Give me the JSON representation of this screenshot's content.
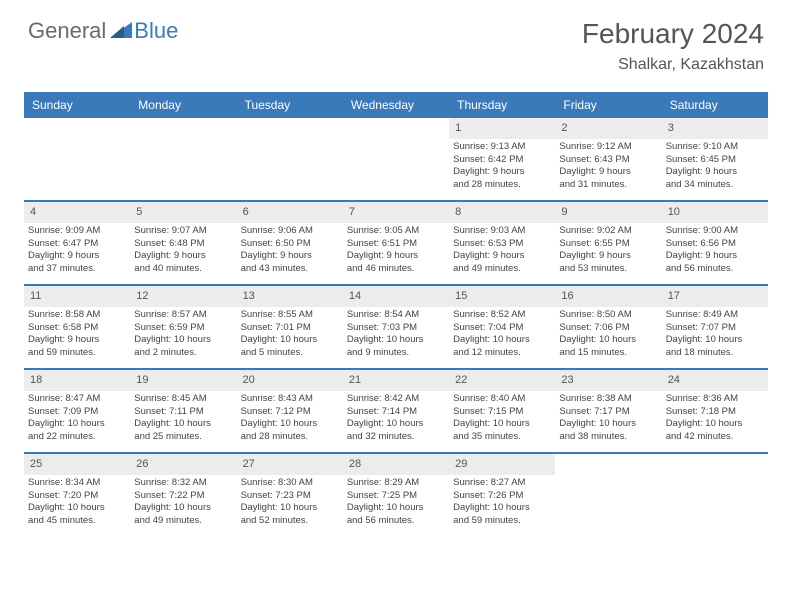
{
  "logo": {
    "general": "General",
    "blue": "Blue"
  },
  "title": "February 2024",
  "location": "Shalkar, Kazakhstan",
  "dayHeaders": [
    "Sunday",
    "Monday",
    "Tuesday",
    "Wednesday",
    "Thursday",
    "Friday",
    "Saturday"
  ],
  "colors": {
    "headerBg": "#3a7ab8",
    "dayNumBg": "#ececec",
    "border": "#3a7ab8"
  },
  "weeks": [
    [
      {
        "empty": true
      },
      {
        "empty": true
      },
      {
        "empty": true
      },
      {
        "empty": true
      },
      {
        "num": "1",
        "sunrise": "Sunrise: 9:13 AM",
        "sunset": "Sunset: 6:42 PM",
        "daylight1": "Daylight: 9 hours",
        "daylight2": "and 28 minutes."
      },
      {
        "num": "2",
        "sunrise": "Sunrise: 9:12 AM",
        "sunset": "Sunset: 6:43 PM",
        "daylight1": "Daylight: 9 hours",
        "daylight2": "and 31 minutes."
      },
      {
        "num": "3",
        "sunrise": "Sunrise: 9:10 AM",
        "sunset": "Sunset: 6:45 PM",
        "daylight1": "Daylight: 9 hours",
        "daylight2": "and 34 minutes."
      }
    ],
    [
      {
        "num": "4",
        "sunrise": "Sunrise: 9:09 AM",
        "sunset": "Sunset: 6:47 PM",
        "daylight1": "Daylight: 9 hours",
        "daylight2": "and 37 minutes."
      },
      {
        "num": "5",
        "sunrise": "Sunrise: 9:07 AM",
        "sunset": "Sunset: 6:48 PM",
        "daylight1": "Daylight: 9 hours",
        "daylight2": "and 40 minutes."
      },
      {
        "num": "6",
        "sunrise": "Sunrise: 9:06 AM",
        "sunset": "Sunset: 6:50 PM",
        "daylight1": "Daylight: 9 hours",
        "daylight2": "and 43 minutes."
      },
      {
        "num": "7",
        "sunrise": "Sunrise: 9:05 AM",
        "sunset": "Sunset: 6:51 PM",
        "daylight1": "Daylight: 9 hours",
        "daylight2": "and 46 minutes."
      },
      {
        "num": "8",
        "sunrise": "Sunrise: 9:03 AM",
        "sunset": "Sunset: 6:53 PM",
        "daylight1": "Daylight: 9 hours",
        "daylight2": "and 49 minutes."
      },
      {
        "num": "9",
        "sunrise": "Sunrise: 9:02 AM",
        "sunset": "Sunset: 6:55 PM",
        "daylight1": "Daylight: 9 hours",
        "daylight2": "and 53 minutes."
      },
      {
        "num": "10",
        "sunrise": "Sunrise: 9:00 AM",
        "sunset": "Sunset: 6:56 PM",
        "daylight1": "Daylight: 9 hours",
        "daylight2": "and 56 minutes."
      }
    ],
    [
      {
        "num": "11",
        "sunrise": "Sunrise: 8:58 AM",
        "sunset": "Sunset: 6:58 PM",
        "daylight1": "Daylight: 9 hours",
        "daylight2": "and 59 minutes."
      },
      {
        "num": "12",
        "sunrise": "Sunrise: 8:57 AM",
        "sunset": "Sunset: 6:59 PM",
        "daylight1": "Daylight: 10 hours",
        "daylight2": "and 2 minutes."
      },
      {
        "num": "13",
        "sunrise": "Sunrise: 8:55 AM",
        "sunset": "Sunset: 7:01 PM",
        "daylight1": "Daylight: 10 hours",
        "daylight2": "and 5 minutes."
      },
      {
        "num": "14",
        "sunrise": "Sunrise: 8:54 AM",
        "sunset": "Sunset: 7:03 PM",
        "daylight1": "Daylight: 10 hours",
        "daylight2": "and 9 minutes."
      },
      {
        "num": "15",
        "sunrise": "Sunrise: 8:52 AM",
        "sunset": "Sunset: 7:04 PM",
        "daylight1": "Daylight: 10 hours",
        "daylight2": "and 12 minutes."
      },
      {
        "num": "16",
        "sunrise": "Sunrise: 8:50 AM",
        "sunset": "Sunset: 7:06 PM",
        "daylight1": "Daylight: 10 hours",
        "daylight2": "and 15 minutes."
      },
      {
        "num": "17",
        "sunrise": "Sunrise: 8:49 AM",
        "sunset": "Sunset: 7:07 PM",
        "daylight1": "Daylight: 10 hours",
        "daylight2": "and 18 minutes."
      }
    ],
    [
      {
        "num": "18",
        "sunrise": "Sunrise: 8:47 AM",
        "sunset": "Sunset: 7:09 PM",
        "daylight1": "Daylight: 10 hours",
        "daylight2": "and 22 minutes."
      },
      {
        "num": "19",
        "sunrise": "Sunrise: 8:45 AM",
        "sunset": "Sunset: 7:11 PM",
        "daylight1": "Daylight: 10 hours",
        "daylight2": "and 25 minutes."
      },
      {
        "num": "20",
        "sunrise": "Sunrise: 8:43 AM",
        "sunset": "Sunset: 7:12 PM",
        "daylight1": "Daylight: 10 hours",
        "daylight2": "and 28 minutes."
      },
      {
        "num": "21",
        "sunrise": "Sunrise: 8:42 AM",
        "sunset": "Sunset: 7:14 PM",
        "daylight1": "Daylight: 10 hours",
        "daylight2": "and 32 minutes."
      },
      {
        "num": "22",
        "sunrise": "Sunrise: 8:40 AM",
        "sunset": "Sunset: 7:15 PM",
        "daylight1": "Daylight: 10 hours",
        "daylight2": "and 35 minutes."
      },
      {
        "num": "23",
        "sunrise": "Sunrise: 8:38 AM",
        "sunset": "Sunset: 7:17 PM",
        "daylight1": "Daylight: 10 hours",
        "daylight2": "and 38 minutes."
      },
      {
        "num": "24",
        "sunrise": "Sunrise: 8:36 AM",
        "sunset": "Sunset: 7:18 PM",
        "daylight1": "Daylight: 10 hours",
        "daylight2": "and 42 minutes."
      }
    ],
    [
      {
        "num": "25",
        "sunrise": "Sunrise: 8:34 AM",
        "sunset": "Sunset: 7:20 PM",
        "daylight1": "Daylight: 10 hours",
        "daylight2": "and 45 minutes."
      },
      {
        "num": "26",
        "sunrise": "Sunrise: 8:32 AM",
        "sunset": "Sunset: 7:22 PM",
        "daylight1": "Daylight: 10 hours",
        "daylight2": "and 49 minutes."
      },
      {
        "num": "27",
        "sunrise": "Sunrise: 8:30 AM",
        "sunset": "Sunset: 7:23 PM",
        "daylight1": "Daylight: 10 hours",
        "daylight2": "and 52 minutes."
      },
      {
        "num": "28",
        "sunrise": "Sunrise: 8:29 AM",
        "sunset": "Sunset: 7:25 PM",
        "daylight1": "Daylight: 10 hours",
        "daylight2": "and 56 minutes."
      },
      {
        "num": "29",
        "sunrise": "Sunrise: 8:27 AM",
        "sunset": "Sunset: 7:26 PM",
        "daylight1": "Daylight: 10 hours",
        "daylight2": "and 59 minutes."
      },
      {
        "empty": true
      },
      {
        "empty": true
      }
    ]
  ]
}
